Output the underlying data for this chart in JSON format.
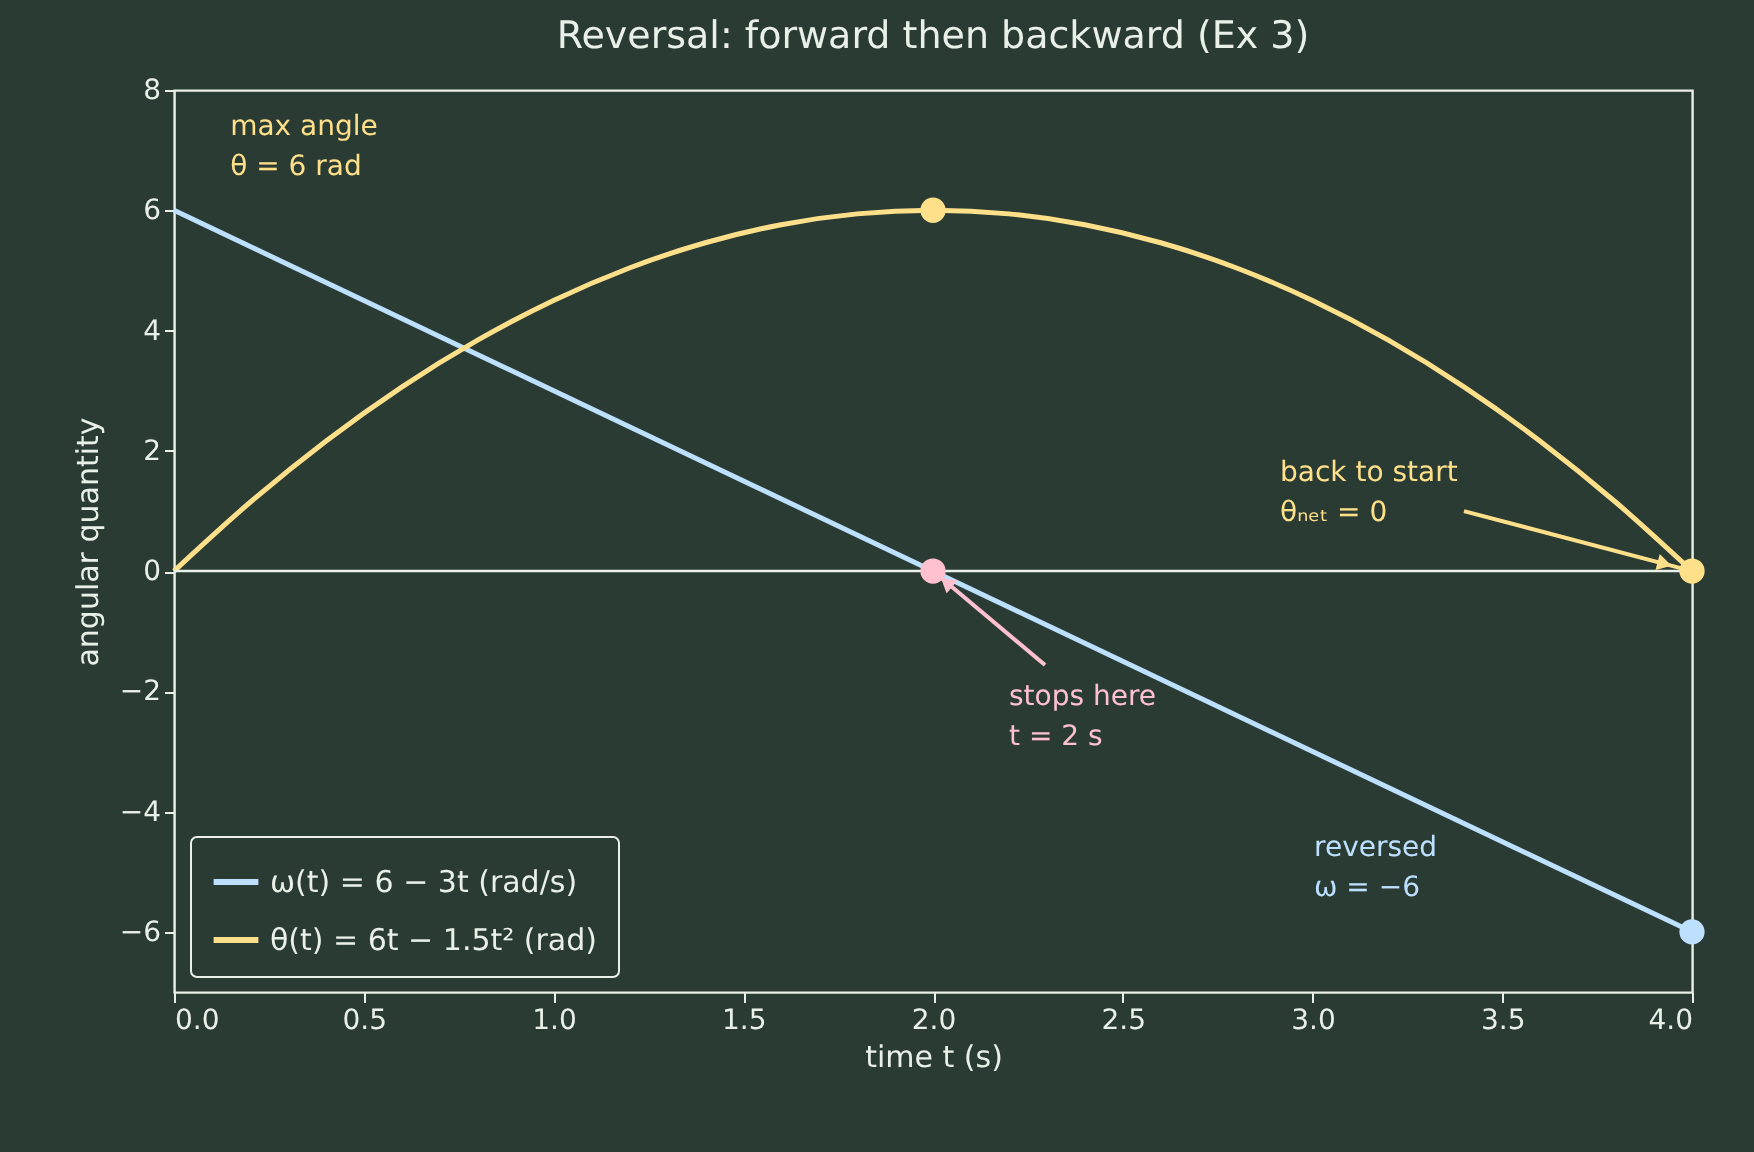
{
  "chart_data": {
    "type": "line",
    "title": "Reversal: forward then backward (Ex 3)",
    "xlabel": "time  t  (s)",
    "ylabel": "angular quantity",
    "xlim": [
      0,
      4
    ],
    "ylim": [
      -7,
      8
    ],
    "xticks": [
      {
        "value": 0,
        "label": "0.0"
      },
      {
        "value": 0.5,
        "label": "0.5"
      },
      {
        "value": 1,
        "label": "1.0"
      },
      {
        "value": 1.5,
        "label": "1.5"
      },
      {
        "value": 2,
        "label": "2.0"
      },
      {
        "value": 2.5,
        "label": "2.5"
      },
      {
        "value": 3,
        "label": "3.0"
      },
      {
        "value": 3.5,
        "label": "3.5"
      },
      {
        "value": 4,
        "label": "4.0"
      }
    ],
    "yticks": [
      -6,
      -4,
      -2,
      0,
      2,
      4,
      6,
      8
    ],
    "grid": false,
    "legend": "bottom left",
    "series": [
      {
        "name": "ω(t) = 6 − 3t (rad/s)",
        "color": "#bde0fe",
        "x": [
          0,
          4
        ],
        "values": [
          6,
          -6
        ]
      },
      {
        "name": "θ(t) = 6t − 1.5t² (rad)",
        "color": "#ffe08a",
        "x": [
          0,
          0.2,
          0.4,
          0.6,
          0.8,
          1,
          1.2,
          1.4,
          1.6,
          1.8,
          2,
          2.2,
          2.4,
          2.6,
          2.8,
          3,
          3.2,
          3.4,
          3.6,
          3.8,
          4
        ],
        "values": [
          0,
          1.14,
          2.16,
          3.06,
          3.84,
          4.5,
          5.04,
          5.46,
          5.76,
          5.94,
          6,
          5.94,
          5.76,
          5.46,
          5.04,
          4.5,
          3.84,
          3.06,
          2.16,
          1.14,
          0
        ]
      },
      {
        "type": "scatter",
        "color": "#ffe08a",
        "x": [
          2,
          4
        ],
        "values": [
          6,
          0
        ]
      },
      {
        "type": "scatter",
        "color": "#ffc0d0",
        "x": [
          2
        ],
        "values": [
          0
        ]
      },
      {
        "type": "scatter",
        "color": "#bde0fe",
        "x": [
          4
        ],
        "values": [
          -6
        ]
      }
    ],
    "ref_lines": [
      {
        "axis": "y",
        "value": 0,
        "color": "#e8f0e8"
      }
    ],
    "annotations": [
      "max angle\nθ = 6 rad",
      {
        "text": "back to start\nθₙₑₜ = 0",
        "x": 4,
        "y": 0
      },
      {
        "text": "stops here\nt = 2 s",
        "x": 2,
        "y": 0
      },
      "reversed\nω = −6"
    ]
  }
}
